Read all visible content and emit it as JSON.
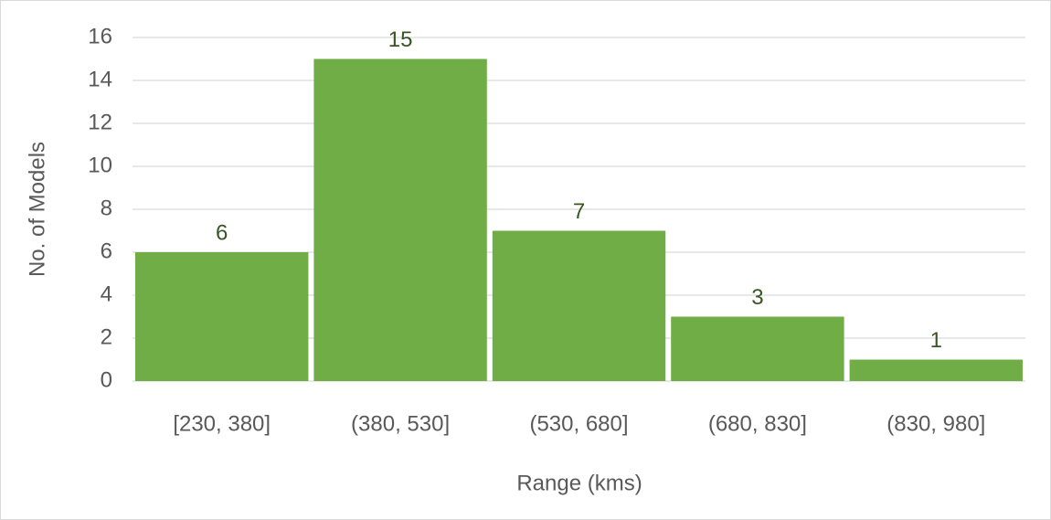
{
  "chart_data": {
    "type": "bar",
    "x_label": "Range (kms)",
    "y_label": "No. of Models",
    "categories": [
      "[230, 380]",
      "(380, 530]",
      "(530, 680]",
      "(680, 830]",
      "(830, 980]"
    ],
    "values": [
      6,
      15,
      7,
      3,
      1
    ],
    "color": "#70ad47",
    "label_color": "#375623",
    "ylim": [
      0,
      16
    ],
    "yticks": [
      0,
      2,
      4,
      6,
      8,
      10,
      12,
      14,
      16
    ],
    "grid": true
  }
}
